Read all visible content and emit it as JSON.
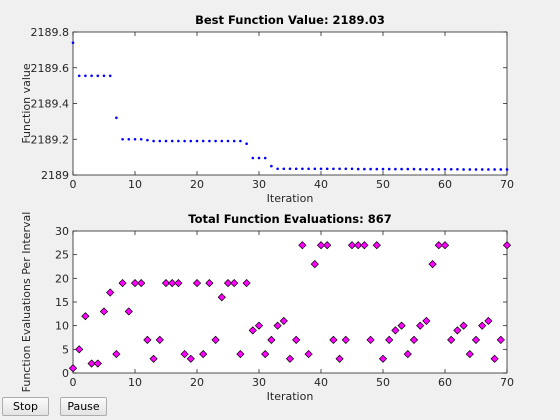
{
  "buttons": {
    "stop": "Stop",
    "pause": "Pause"
  },
  "chart_data": [
    {
      "type": "scatter",
      "title": "Best Function Value: 2189.03",
      "xlabel": "Iteration",
      "ylabel": "Function value",
      "xlim": [
        0,
        70
      ],
      "ylim": [
        2189,
        2189.8
      ],
      "xticks": [
        0,
        10,
        20,
        30,
        40,
        50,
        60,
        70
      ],
      "yticks": [
        2189,
        2189.2,
        2189.4,
        2189.6,
        2189.8
      ],
      "ytick_labels": [
        "2189",
        "2189.2",
        "2189.4",
        "2189.6",
        "2189.8"
      ],
      "marker": "dot",
      "color": "#0000ff",
      "x": [
        0,
        1,
        2,
        3,
        4,
        5,
        6,
        7,
        8,
        9,
        10,
        11,
        12,
        13,
        14,
        15,
        16,
        17,
        18,
        19,
        20,
        21,
        22,
        23,
        24,
        25,
        26,
        27,
        28,
        29,
        30,
        31,
        32,
        33,
        34,
        35,
        36,
        37,
        38,
        39,
        40,
        41,
        42,
        43,
        44,
        45,
        46,
        47,
        48,
        49,
        50,
        51,
        52,
        53,
        54,
        55,
        56,
        57,
        58,
        59,
        60,
        61,
        62,
        63,
        64,
        65,
        66,
        67,
        68,
        69,
        70
      ],
      "y": [
        2189.74,
        2189.555,
        2189.555,
        2189.555,
        2189.555,
        2189.555,
        2189.555,
        2189.32,
        2189.2,
        2189.2,
        2189.2,
        2189.2,
        2189.195,
        2189.19,
        2189.19,
        2189.19,
        2189.19,
        2189.19,
        2189.19,
        2189.19,
        2189.19,
        2189.19,
        2189.19,
        2189.19,
        2189.19,
        2189.19,
        2189.19,
        2189.19,
        2189.175,
        2189.095,
        2189.095,
        2189.095,
        2189.05,
        2189.035,
        2189.035,
        2189.035,
        2189.035,
        2189.035,
        2189.035,
        2189.035,
        2189.035,
        2189.035,
        2189.035,
        2189.035,
        2189.035,
        2189.035,
        2189.033,
        2189.033,
        2189.033,
        2189.033,
        2189.033,
        2189.033,
        2189.033,
        2189.033,
        2189.033,
        2189.033,
        2189.032,
        2189.032,
        2189.032,
        2189.032,
        2189.032,
        2189.032,
        2189.032,
        2189.031,
        2189.031,
        2189.031,
        2189.031,
        2189.031,
        2189.031,
        2189.031,
        2189.031
      ]
    },
    {
      "type": "scatter",
      "title": "Total Function Evaluations: 867",
      "xlabel": "Iteration",
      "ylabel": "Function Evaluations Per Interval",
      "xlim": [
        0,
        70
      ],
      "ylim": [
        0,
        30
      ],
      "xticks": [
        0,
        10,
        20,
        30,
        40,
        50,
        60,
        70
      ],
      "yticks": [
        0,
        5,
        10,
        15,
        20,
        25,
        30
      ],
      "ytick_labels": [
        "0",
        "5",
        "10",
        "15",
        "20",
        "25",
        "30"
      ],
      "marker": "diamond",
      "color": "#ff00ff",
      "x": [
        0,
        1,
        2,
        3,
        4,
        5,
        6,
        7,
        8,
        9,
        10,
        11,
        12,
        13,
        14,
        15,
        16,
        17,
        18,
        19,
        20,
        21,
        22,
        23,
        24,
        25,
        26,
        27,
        28,
        29,
        30,
        31,
        32,
        33,
        34,
        35,
        36,
        37,
        38,
        39,
        40,
        41,
        42,
        43,
        44,
        45,
        46,
        47,
        48,
        49,
        50,
        51,
        52,
        53,
        54,
        55,
        56,
        57,
        58,
        59,
        60,
        61,
        62,
        63,
        64,
        65,
        66,
        67,
        68,
        69,
        70
      ],
      "y": [
        1,
        5,
        12,
        2,
        2,
        13,
        17,
        4,
        19,
        13,
        19,
        19,
        7,
        3,
        7,
        19,
        19,
        19,
        4,
        3,
        19,
        4,
        19,
        7,
        16,
        19,
        19,
        4,
        19,
        9,
        10,
        4,
        7,
        10,
        11,
        3,
        7,
        27,
        4,
        23,
        27,
        27,
        7,
        3,
        7,
        27,
        27,
        27,
        7,
        27,
        3,
        7,
        9,
        10,
        4,
        7,
        10,
        11,
        23,
        27,
        27,
        7,
        9,
        10,
        4,
        7,
        10,
        11,
        3,
        7,
        27
      ]
    }
  ]
}
